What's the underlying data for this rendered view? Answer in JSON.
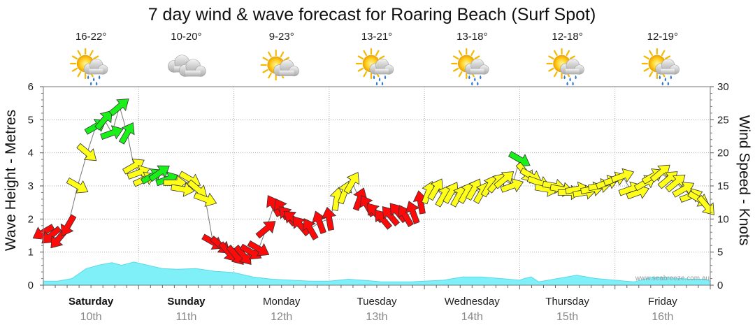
{
  "title": "7 day wind & wave forecast for Roaring Beach (Surf Spot)",
  "watermark": "www.seabreeze.com.au",
  "colors": {
    "wave_fill": "#80f0f8",
    "wave_stroke": "#5ad8e8",
    "arrow_red": "#ff0a0a",
    "arrow_yellow": "#ffff19",
    "arrow_green": "#19ef19",
    "grid": "#aaaaaa"
  },
  "days": [
    {
      "name": "Saturday",
      "date": "10th",
      "temp": "16-22°",
      "icon": "sun-cloud-rain-icon",
      "bold": true
    },
    {
      "name": "Sunday",
      "date": "11th",
      "temp": "10-20°",
      "icon": "cloud-icon",
      "bold": true
    },
    {
      "name": "Monday",
      "date": "12th",
      "temp": "9-23°",
      "icon": "sun-cloud-icon",
      "bold": false
    },
    {
      "name": "Tuesday",
      "date": "13th",
      "temp": "13-21°",
      "icon": "sun-cloud-rain-icon",
      "bold": false
    },
    {
      "name": "Wednesday",
      "date": "14th",
      "temp": "13-18°",
      "icon": "sun-cloud-rain-icon",
      "bold": false
    },
    {
      "name": "Thursday",
      "date": "15th",
      "temp": "12-18°",
      "icon": "sun-cloud-rain-icon",
      "bold": false
    },
    {
      "name": "Friday",
      "date": "16th",
      "temp": "12-19°",
      "icon": "sun-cloud-rain-icon",
      "bold": false
    }
  ],
  "chart_data": {
    "type": "line",
    "title": "7 day wind & wave forecast for Roaring Beach (Surf Spot)",
    "x_domain": [
      0,
      7
    ],
    "x_unit": "days from Saturday 10th 00:00",
    "ylabel_left": "Wave Height - Metres",
    "ylabel_right": "Wind Speed - Knots",
    "ylim_left": [
      0,
      6
    ],
    "ylim_right": [
      0,
      30
    ],
    "yticks_left": [
      "0",
      "1",
      "2",
      "3",
      "4",
      "5",
      "6"
    ],
    "yticks_right": [
      "0",
      "5",
      "10",
      "15",
      "20",
      "25",
      "30"
    ],
    "grid": true,
    "series": [
      {
        "name": "Wave Height",
        "axis": "left",
        "style": "filled-area",
        "x": [
          0,
          0.15,
          0.3,
          0.45,
          0.6,
          0.72,
          0.82,
          0.95,
          1.1,
          1.25,
          1.4,
          1.6,
          1.8,
          2.0,
          2.2,
          2.4,
          2.6,
          2.8,
          3.0,
          3.2,
          3.4,
          3.55,
          3.7,
          3.85,
          4.0,
          4.2,
          4.4,
          4.6,
          4.8,
          5.0,
          5.05,
          5.12,
          5.2,
          5.4,
          5.6,
          5.8,
          6.0,
          6.2,
          6.4,
          6.6,
          6.8,
          6.95,
          7.0
        ],
        "values": [
          0.12,
          0.12,
          0.2,
          0.5,
          0.62,
          0.68,
          0.6,
          0.7,
          0.6,
          0.5,
          0.48,
          0.5,
          0.42,
          0.38,
          0.25,
          0.18,
          0.15,
          0.12,
          0.12,
          0.18,
          0.14,
          0.1,
          0.1,
          0.1,
          0.12,
          0.15,
          0.25,
          0.25,
          0.2,
          0.15,
          0.2,
          0.25,
          0.1,
          0.2,
          0.3,
          0.2,
          0.15,
          0.1,
          0.25,
          0.22,
          0.18,
          0.18,
          0.12
        ]
      },
      {
        "name": "Wind Speed",
        "axis": "right",
        "style": "line-with-direction-arrows",
        "x": [
          0,
          0.08,
          0.16,
          0.26,
          0.36,
          0.46,
          0.55,
          0.64,
          0.72,
          0.8,
          0.88,
          0.95,
          1.0,
          1.06,
          1.14,
          1.22,
          1.3,
          1.38,
          1.46,
          1.54,
          1.62,
          1.7,
          1.78,
          1.86,
          1.94,
          2.02,
          2.1,
          2.18,
          2.26,
          2.34,
          2.42,
          2.5,
          2.56,
          2.62,
          2.7,
          2.8,
          2.9,
          3.0,
          3.08,
          3.16,
          3.24,
          3.32,
          3.4,
          3.48,
          3.56,
          3.64,
          3.72,
          3.8,
          3.88,
          3.96,
          4.04,
          4.12,
          4.2,
          4.28,
          4.36,
          4.44,
          4.52,
          4.6,
          4.68,
          4.76,
          4.84,
          4.92,
          5.0,
          5.06,
          5.12,
          5.2,
          5.28,
          5.36,
          5.44,
          5.52,
          5.6,
          5.68,
          5.76,
          5.84,
          5.92,
          6.0,
          6.08,
          6.16,
          6.24,
          6.32,
          6.4,
          6.48,
          6.56,
          6.64,
          6.72,
          6.8,
          6.88,
          6.96
        ],
        "values": [
          8,
          7.5,
          7,
          9,
          15,
          20,
          24,
          25,
          23,
          27,
          23,
          18,
          17,
          16,
          16.5,
          17,
          16,
          15.5,
          14.5,
          16,
          14.5,
          13,
          6.5,
          6.0,
          5.0,
          4.5,
          4.5,
          5.0,
          5.5,
          8.5,
          12,
          11.5,
          10.5,
          10,
          9,
          8.5,
          9.5,
          10,
          13,
          14,
          15.5,
          13,
          12,
          11,
          10,
          10.5,
          11,
          10.5,
          11,
          12.5,
          14,
          14.5,
          13.5,
          14,
          13.5,
          14,
          14.5,
          14,
          15,
          15.5,
          16,
          15,
          19,
          17,
          16.5,
          15.5,
          14.5,
          15,
          14.5,
          14,
          14.5,
          14,
          14.5,
          15,
          15.5,
          16,
          16.5,
          14.5,
          14,
          15.5,
          16.5,
          17,
          16,
          15.5,
          14.5,
          13.5,
          13,
          12
        ],
        "directions_deg": [
          60,
          50,
          40,
          30,
          300,
          310,
          240,
          220,
          250,
          230,
          210,
          240,
          250,
          245,
          240,
          235,
          250,
          270,
          280,
          300,
          310,
          290,
          300,
          310,
          320,
          320,
          320,
          300,
          300,
          230,
          150,
          150,
          140,
          130,
          140,
          150,
          160,
          170,
          190,
          200,
          210,
          200,
          150,
          140,
          140,
          140,
          140,
          150,
          160,
          170,
          200,
          210,
          210,
          210,
          210,
          210,
          210,
          210,
          210,
          220,
          230,
          250,
          300,
          320,
          300,
          290,
          280,
          280,
          280,
          270,
          260,
          260,
          260,
          260,
          250,
          250,
          250,
          250,
          250,
          240,
          240,
          230,
          230,
          230,
          240,
          250,
          300,
          320
        ],
        "colors": [
          "red",
          "red",
          "red",
          "red",
          "yellow",
          "yellow",
          "green",
          "green",
          "green",
          "green",
          "green",
          "yellow",
          "yellow",
          "yellow",
          "green",
          "green",
          "green",
          "yellow",
          "yellow",
          "yellow",
          "yellow",
          "yellow",
          "red",
          "red",
          "red",
          "red",
          "red",
          "red",
          "red",
          "red",
          "red",
          "red",
          "red",
          "red",
          "red",
          "red",
          "red",
          "red",
          "yellow",
          "yellow",
          "yellow",
          "red",
          "red",
          "red",
          "red",
          "red",
          "red",
          "red",
          "red",
          "red",
          "yellow",
          "yellow",
          "yellow",
          "yellow",
          "yellow",
          "yellow",
          "yellow",
          "yellow",
          "yellow",
          "yellow",
          "yellow",
          "yellow",
          "green",
          "yellow",
          "yellow",
          "yellow",
          "yellow",
          "yellow",
          "yellow",
          "yellow",
          "yellow",
          "yellow",
          "yellow",
          "yellow",
          "yellow",
          "yellow",
          "yellow",
          "yellow",
          "yellow",
          "yellow",
          "yellow",
          "yellow",
          "yellow",
          "yellow",
          "yellow",
          "yellow",
          "yellow",
          "yellow"
        ]
      }
    ]
  }
}
